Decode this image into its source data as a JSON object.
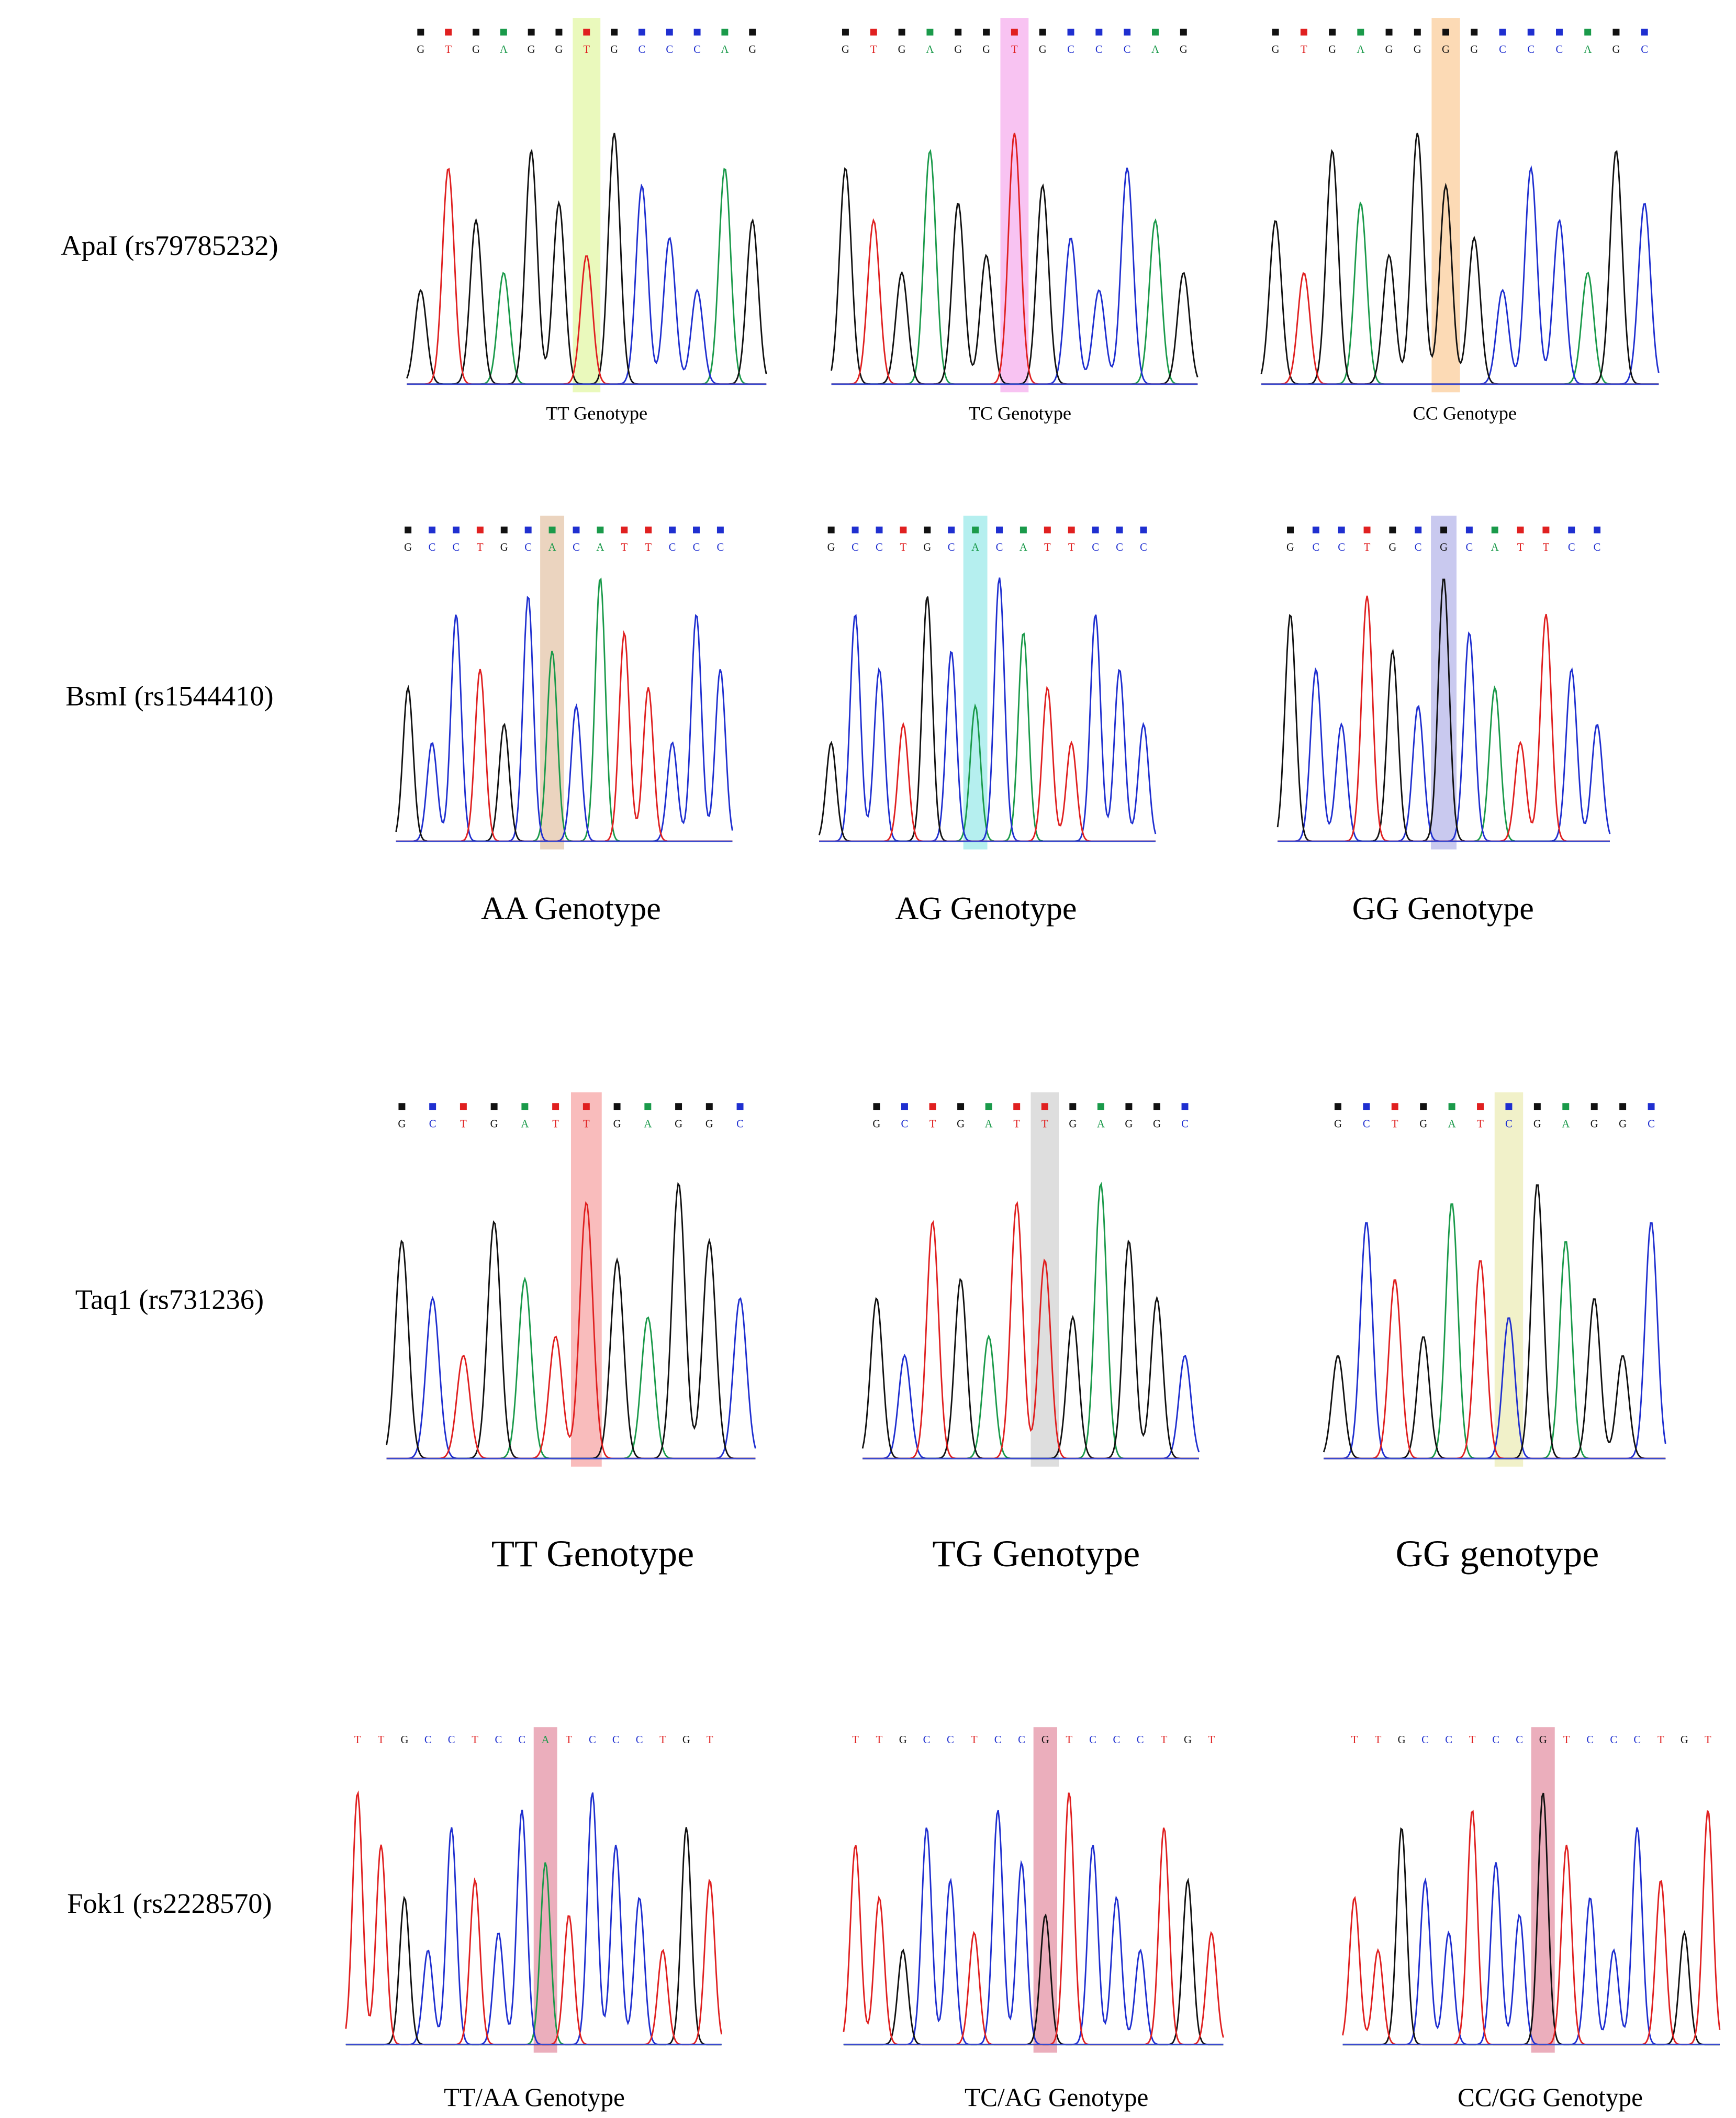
{
  "rows": [
    {
      "label": "ApaI (rs79785232)",
      "panels": [
        {
          "bases": [
            "G",
            "T",
            "G",
            "A",
            "G",
            "G",
            "T",
            "G",
            "C",
            "C",
            "C",
            "A",
            "G"
          ],
          "genotype": "TT Genotype",
          "highlight": 6,
          "highlight_color": "#e6f8b0"
        },
        {
          "bases": [
            "G",
            "T",
            "G",
            "A",
            "G",
            "G",
            "T",
            "G",
            "C",
            "C",
            "C",
            "A",
            "G"
          ],
          "genotype": "TC Genotype",
          "highlight": 6,
          "highlight_color": "#f7b8f0"
        },
        {
          "bases": [
            "G",
            "T",
            "G",
            "A",
            "G",
            "G",
            "G",
            "G",
            "C",
            "C",
            "C",
            "A",
            "G",
            "C"
          ],
          "genotype": "CC Genotype",
          "highlight": 6,
          "highlight_color": "#fbd3a8"
        }
      ]
    },
    {
      "label": "BsmI (rs1544410)",
      "panels": [
        {
          "bases": [
            "G",
            "C",
            "C",
            "T",
            "G",
            "C",
            "A",
            "C",
            "A",
            "T",
            "T",
            "C",
            "C",
            "C"
          ],
          "genotype": "AA Genotype",
          "highlight": 6,
          "highlight_color": "#e8cdb4"
        },
        {
          "bases": [
            "G",
            "C",
            "C",
            "T",
            "G",
            "C",
            "A",
            "C",
            "A",
            "T",
            "T",
            "C",
            "C",
            "C"
          ],
          "genotype": "AG Genotype",
          "highlight": 6,
          "highlight_color": "#a8ecec"
        },
        {
          "bases": [
            "G",
            "C",
            "C",
            "T",
            "G",
            "C",
            "G",
            "C",
            "A",
            "T",
            "T",
            "C",
            "C"
          ],
          "genotype": "GG Genotype",
          "highlight": 6,
          "highlight_color": "#c0c0ec"
        }
      ]
    },
    {
      "label": "Taq1 (rs731236)",
      "panels": [
        {
          "bases": [
            "G",
            "C",
            "T",
            "G",
            "A",
            "T",
            "T",
            "G",
            "A",
            "G",
            "G",
            "C"
          ],
          "genotype": "TT Genotype",
          "highlight": 6,
          "highlight_color": "#f8b0b0"
        },
        {
          "bases": [
            "G",
            "C",
            "T",
            "G",
            "A",
            "T",
            "T",
            "G",
            "A",
            "G",
            "G",
            "C"
          ],
          "genotype": "TG Genotype",
          "highlight": 6,
          "highlight_color": "#d8d8d8"
        },
        {
          "bases": [
            "G",
            "C",
            "T",
            "G",
            "A",
            "T",
            "C",
            "G",
            "A",
            "G",
            "G",
            "C"
          ],
          "genotype": "GG genotype",
          "highlight": 6,
          "highlight_color": "#eeeec0"
        }
      ]
    },
    {
      "label": "Fok1 (rs2228570)",
      "panels": [
        {
          "bases": [
            "T",
            "T",
            "G",
            "C",
            "C",
            "T",
            "C",
            "C",
            "A",
            "T",
            "C",
            "C",
            "C",
            "T",
            "G",
            "T"
          ],
          "genotype": "TT/AA Genotype",
          "highlight": 8,
          "highlight_color": "#e8a0b0"
        },
        {
          "bases": [
            "T",
            "T",
            "G",
            "C",
            "C",
            "T",
            "C",
            "C",
            "G",
            "T",
            "C",
            "C",
            "C",
            "T",
            "G",
            "T"
          ],
          "genotype": "TC/AG Genotype",
          "highlight": 8,
          "highlight_color": "#e8a0b0"
        },
        {
          "bases": [
            "T",
            "T",
            "G",
            "C",
            "C",
            "T",
            "C",
            "C",
            "G",
            "T",
            "C",
            "C",
            "C",
            "T",
            "G",
            "T"
          ],
          "genotype": "CC/GG Genotype",
          "highlight": 8,
          "highlight_color": "#e8a0b0"
        }
      ]
    }
  ]
}
